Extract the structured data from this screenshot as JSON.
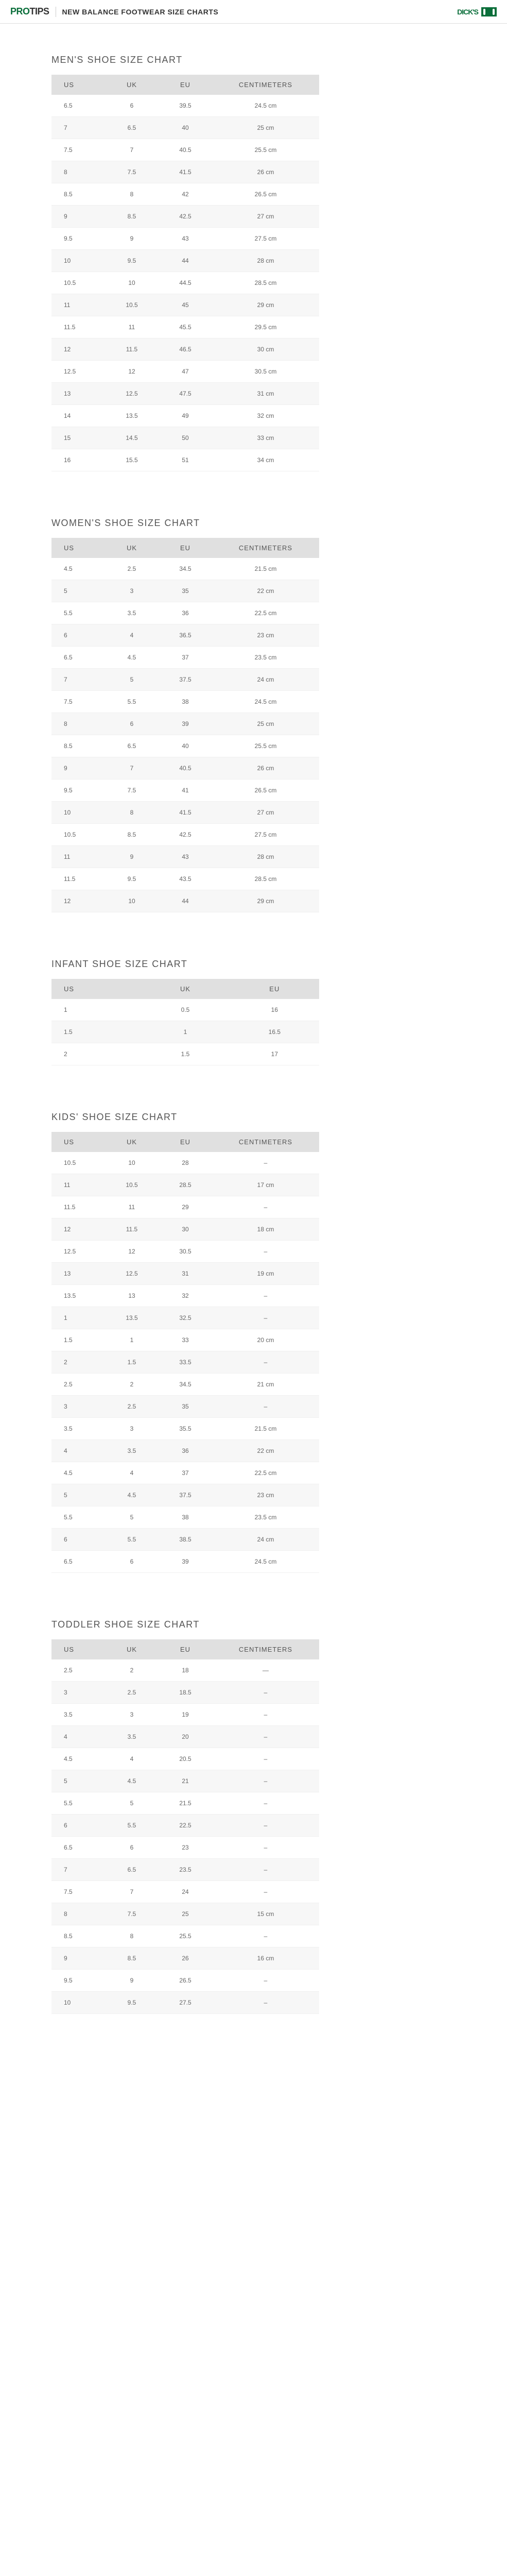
{
  "header": {
    "brand_pro": "PRO",
    "brand_tips": "TIPS",
    "page_title": "NEW BALANCE FOOTWEAR SIZE CHARTS",
    "logo_text": "DICK'S"
  },
  "sections": [
    {
      "title": "MEN'S SHOE SIZE CHART",
      "columns": [
        "US",
        "UK",
        "EU",
        "CENTIMETERS"
      ],
      "rows": [
        [
          "6.5",
          "6",
          "39.5",
          "24.5 cm"
        ],
        [
          "7",
          "6.5",
          "40",
          "25 cm"
        ],
        [
          "7.5",
          "7",
          "40.5",
          "25.5 cm"
        ],
        [
          "8",
          "7.5",
          "41.5",
          "26 cm"
        ],
        [
          "8.5",
          "8",
          "42",
          "26.5 cm"
        ],
        [
          "9",
          "8.5",
          "42.5",
          "27 cm"
        ],
        [
          "9.5",
          "9",
          "43",
          "27.5 cm"
        ],
        [
          "10",
          "9.5",
          "44",
          "28 cm"
        ],
        [
          "10.5",
          "10",
          "44.5",
          "28.5 cm"
        ],
        [
          "11",
          "10.5",
          "45",
          "29 cm"
        ],
        [
          "11.5",
          "11",
          "45.5",
          "29.5 cm"
        ],
        [
          "12",
          "11.5",
          "46.5",
          "30 cm"
        ],
        [
          "12.5",
          "12",
          "47",
          "30.5 cm"
        ],
        [
          "13",
          "12.5",
          "47.5",
          "31 cm"
        ],
        [
          "14",
          "13.5",
          "49",
          "32 cm"
        ],
        [
          "15",
          "14.5",
          "50",
          "33 cm"
        ],
        [
          "16",
          "15.5",
          "51",
          "34 cm"
        ]
      ]
    },
    {
      "title": "WOMEN'S SHOE SIZE CHART",
      "columns": [
        "US",
        "UK",
        "EU",
        "CENTIMETERS"
      ],
      "rows": [
        [
          "4.5",
          "2.5",
          "34.5",
          "21.5 cm"
        ],
        [
          "5",
          "3",
          "35",
          "22 cm"
        ],
        [
          "5.5",
          "3.5",
          "36",
          "22.5 cm"
        ],
        [
          "6",
          "4",
          "36.5",
          "23 cm"
        ],
        [
          "6.5",
          "4.5",
          "37",
          "23.5 cm"
        ],
        [
          "7",
          "5",
          "37.5",
          "24 cm"
        ],
        [
          "7.5",
          "5.5",
          "38",
          "24.5 cm"
        ],
        [
          "8",
          "6",
          "39",
          "25 cm"
        ],
        [
          "8.5",
          "6.5",
          "40",
          "25.5 cm"
        ],
        [
          "9",
          "7",
          "40.5",
          "26 cm"
        ],
        [
          "9.5",
          "7.5",
          "41",
          "26.5 cm"
        ],
        [
          "10",
          "8",
          "41.5",
          "27 cm"
        ],
        [
          "10.5",
          "8.5",
          "42.5",
          "27.5 cm"
        ],
        [
          "11",
          "9",
          "43",
          "28 cm"
        ],
        [
          "11.5",
          "9.5",
          "43.5",
          "28.5 cm"
        ],
        [
          "12",
          "10",
          "44",
          "29 cm"
        ]
      ]
    },
    {
      "title": "INFANT SHOE SIZE CHART",
      "columns": [
        "US",
        "UK",
        "EU"
      ],
      "rows": [
        [
          "1",
          "0.5",
          "16"
        ],
        [
          "1.5",
          "1",
          "16.5"
        ],
        [
          "2",
          "1.5",
          "17"
        ]
      ]
    },
    {
      "title": "KIDS' SHOE SIZE CHART",
      "columns": [
        "US",
        "UK",
        "EU",
        "CENTIMETERS"
      ],
      "rows": [
        [
          "10.5",
          "10",
          "28",
          "–"
        ],
        [
          "11",
          "10.5",
          "28.5",
          "17 cm"
        ],
        [
          "11.5",
          "11",
          "29",
          "–"
        ],
        [
          "12",
          "11.5",
          "30",
          "18 cm"
        ],
        [
          "12.5",
          "12",
          "30.5",
          "–"
        ],
        [
          "13",
          "12.5",
          "31",
          "19 cm"
        ],
        [
          "13.5",
          "13",
          "32",
          "–"
        ],
        [
          "1",
          "13.5",
          "32.5",
          "–"
        ],
        [
          "1.5",
          "1",
          "33",
          "20 cm"
        ],
        [
          "2",
          "1.5",
          "33.5",
          "–"
        ],
        [
          "2.5",
          "2",
          "34.5",
          "21 cm"
        ],
        [
          "3",
          "2.5",
          "35",
          "–"
        ],
        [
          "3.5",
          "3",
          "35.5",
          "21.5 cm"
        ],
        [
          "4",
          "3.5",
          "36",
          "22 cm"
        ],
        [
          "4.5",
          "4",
          "37",
          "22.5 cm"
        ],
        [
          "5",
          "4.5",
          "37.5",
          "23 cm"
        ],
        [
          "5.5",
          "5",
          "38",
          "23.5 cm"
        ],
        [
          "6",
          "5.5",
          "38.5",
          "24 cm"
        ],
        [
          "6.5",
          "6",
          "39",
          "24.5 cm"
        ]
      ]
    },
    {
      "title": "TODDLER SHOE SIZE CHART",
      "columns": [
        "US",
        "UK",
        "EU",
        "CENTIMETERS"
      ],
      "rows": [
        [
          "2.5",
          "2",
          "18",
          "—"
        ],
        [
          "3",
          "2.5",
          "18.5",
          "–"
        ],
        [
          "3.5",
          "3",
          "19",
          "–"
        ],
        [
          "4",
          "3.5",
          "20",
          "–"
        ],
        [
          "4.5",
          "4",
          "20.5",
          "–"
        ],
        [
          "5",
          "4.5",
          "21",
          "–"
        ],
        [
          "5.5",
          "5",
          "21.5",
          "–"
        ],
        [
          "6",
          "5.5",
          "22.5",
          "–"
        ],
        [
          "6.5",
          "6",
          "23",
          "–"
        ],
        [
          "7",
          "6.5",
          "23.5",
          "–"
        ],
        [
          "7.5",
          "7",
          "24",
          "–"
        ],
        [
          "8",
          "7.5",
          "25",
          "15 cm"
        ],
        [
          "8.5",
          "8",
          "25.5",
          "–"
        ],
        [
          "9",
          "8.5",
          "26",
          "16 cm"
        ],
        [
          "9.5",
          "9",
          "26.5",
          "–"
        ],
        [
          "10",
          "9.5",
          "27.5",
          "–"
        ]
      ]
    }
  ]
}
